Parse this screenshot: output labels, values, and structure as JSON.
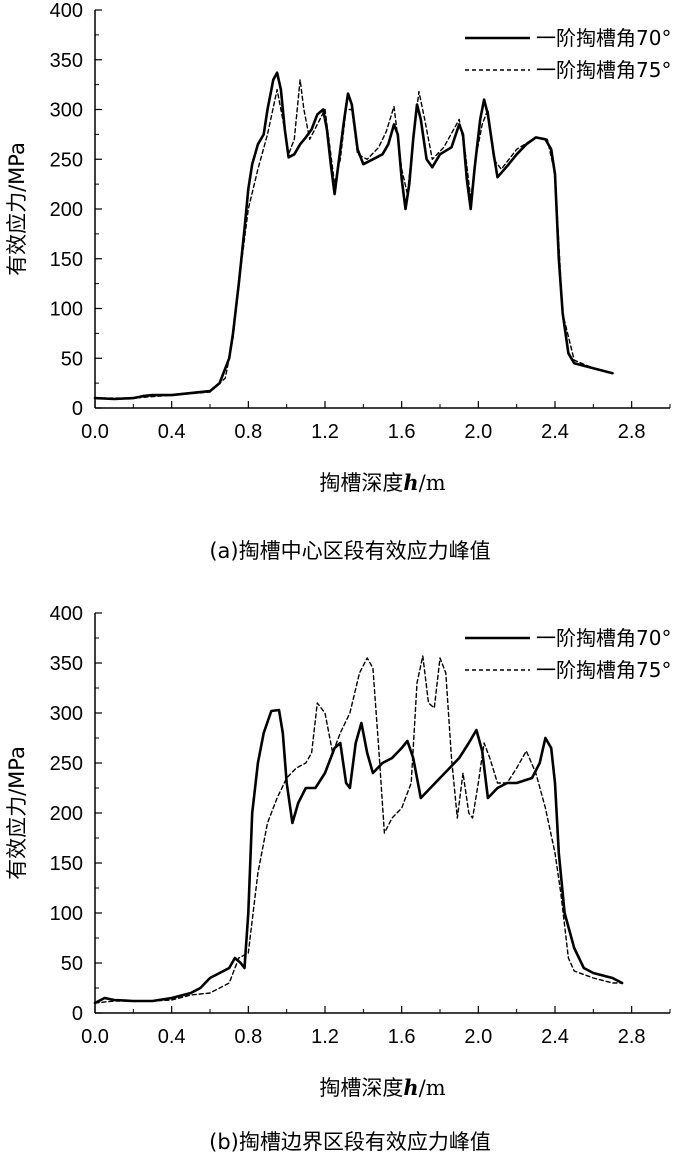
{
  "chart_data": [
    {
      "type": "line",
      "caption": "(a)掏槽中心区段有效应力峰值",
      "xlabel_main": "掏槽深度",
      "xlabel_var": "h",
      "xlabel_unit": "/m",
      "ylabel": "有效应力/MPa",
      "xlim": [
        0,
        3.0
      ],
      "ylim": [
        0,
        400
      ],
      "xticks": [
        "0.0",
        "0.4",
        "0.8",
        "1.2",
        "1.6",
        "2.0",
        "2.4",
        "2.8"
      ],
      "yticks": [
        "0",
        "50",
        "100",
        "150",
        "200",
        "250",
        "300",
        "350",
        "400"
      ],
      "legend_position": "top-right",
      "series": [
        {
          "name": "一阶掏槽角70°",
          "style": "solid",
          "points": [
            [
              0.0,
              10
            ],
            [
              0.1,
              9
            ],
            [
              0.2,
              10
            ],
            [
              0.25,
              12
            ],
            [
              0.3,
              13
            ],
            [
              0.4,
              13
            ],
            [
              0.5,
              15
            ],
            [
              0.6,
              17
            ],
            [
              0.65,
              25
            ],
            [
              0.7,
              50
            ],
            [
              0.72,
              75
            ],
            [
              0.75,
              125
            ],
            [
              0.78,
              180
            ],
            [
              0.8,
              220
            ],
            [
              0.82,
              245
            ],
            [
              0.85,
              265
            ],
            [
              0.88,
              275
            ],
            [
              0.9,
              300
            ],
            [
              0.93,
              330
            ],
            [
              0.95,
              337
            ],
            [
              0.97,
              320
            ],
            [
              0.99,
              280
            ],
            [
              1.01,
              252
            ],
            [
              1.04,
              255
            ],
            [
              1.07,
              265
            ],
            [
              1.1,
              272
            ],
            [
              1.13,
              280
            ],
            [
              1.16,
              295
            ],
            [
              1.19,
              300
            ],
            [
              1.21,
              280
            ],
            [
              1.23,
              245
            ],
            [
              1.25,
              215
            ],
            [
              1.27,
              245
            ],
            [
              1.3,
              290
            ],
            [
              1.32,
              316
            ],
            [
              1.34,
              305
            ],
            [
              1.37,
              260
            ],
            [
              1.4,
              245
            ],
            [
              1.45,
              250
            ],
            [
              1.5,
              255
            ],
            [
              1.53,
              265
            ],
            [
              1.56,
              285
            ],
            [
              1.58,
              275
            ],
            [
              1.6,
              230
            ],
            [
              1.62,
              200
            ],
            [
              1.64,
              225
            ],
            [
              1.66,
              270
            ],
            [
              1.68,
              305
            ],
            [
              1.7,
              290
            ],
            [
              1.73,
              250
            ],
            [
              1.76,
              242
            ],
            [
              1.8,
              255
            ],
            [
              1.86,
              262
            ],
            [
              1.9,
              285
            ],
            [
              1.92,
              275
            ],
            [
              1.94,
              230
            ],
            [
              1.96,
              200
            ],
            [
              1.98,
              240
            ],
            [
              2.01,
              290
            ],
            [
              2.03,
              310
            ],
            [
              2.05,
              295
            ],
            [
              2.08,
              255
            ],
            [
              2.1,
              232
            ],
            [
              2.15,
              243
            ],
            [
              2.2,
              255
            ],
            [
              2.25,
              265
            ],
            [
              2.3,
              272
            ],
            [
              2.35,
              270
            ],
            [
              2.38,
              260
            ],
            [
              2.4,
              235
            ],
            [
              2.42,
              150
            ],
            [
              2.44,
              95
            ],
            [
              2.47,
              55
            ],
            [
              2.5,
              45
            ],
            [
              2.6,
              40
            ],
            [
              2.7,
              35
            ]
          ]
        },
        {
          "name": "一阶掏槽角75°",
          "style": "dashed",
          "points": [
            [
              0.0,
              10
            ],
            [
              0.2,
              10
            ],
            [
              0.4,
              13
            ],
            [
              0.6,
              16
            ],
            [
              0.68,
              30
            ],
            [
              0.72,
              70
            ],
            [
              0.76,
              140
            ],
            [
              0.8,
              200
            ],
            [
              0.85,
              240
            ],
            [
              0.9,
              275
            ],
            [
              0.95,
              320
            ],
            [
              0.98,
              290
            ],
            [
              1.01,
              255
            ],
            [
              1.04,
              270
            ],
            [
              1.07,
              330
            ],
            [
              1.09,
              300
            ],
            [
              1.12,
              270
            ],
            [
              1.16,
              285
            ],
            [
              1.2,
              300
            ],
            [
              1.23,
              255
            ],
            [
              1.25,
              225
            ],
            [
              1.28,
              250
            ],
            [
              1.31,
              300
            ],
            [
              1.34,
              300
            ],
            [
              1.37,
              255
            ],
            [
              1.42,
              250
            ],
            [
              1.48,
              262
            ],
            [
              1.52,
              278
            ],
            [
              1.56,
              303
            ],
            [
              1.6,
              240
            ],
            [
              1.63,
              215
            ],
            [
              1.66,
              270
            ],
            [
              1.69,
              318
            ],
            [
              1.72,
              290
            ],
            [
              1.76,
              250
            ],
            [
              1.82,
              262
            ],
            [
              1.9,
              290
            ],
            [
              1.93,
              260
            ],
            [
              1.96,
              210
            ],
            [
              1.99,
              255
            ],
            [
              2.02,
              285
            ],
            [
              2.05,
              300
            ],
            [
              2.08,
              250
            ],
            [
              2.12,
              240
            ],
            [
              2.2,
              260
            ],
            [
              2.3,
              272
            ],
            [
              2.36,
              270
            ],
            [
              2.4,
              235
            ],
            [
              2.44,
              95
            ],
            [
              2.5,
              48
            ],
            [
              2.6,
              40
            ],
            [
              2.7,
              35
            ]
          ]
        }
      ]
    },
    {
      "type": "line",
      "caption": "(b)掏槽边界区段有效应力峰值",
      "xlabel_main": "掏槽深度",
      "xlabel_var": "h",
      "xlabel_unit": "/m",
      "ylabel": "有效应力/MPa",
      "xlim": [
        0,
        3.0
      ],
      "ylim": [
        0,
        400
      ],
      "xticks": [
        "0.0",
        "0.4",
        "0.8",
        "1.2",
        "1.6",
        "2.0",
        "2.4",
        "2.8"
      ],
      "yticks": [
        "0",
        "50",
        "100",
        "150",
        "200",
        "250",
        "300",
        "350",
        "400"
      ],
      "legend_position": "top-right",
      "series": [
        {
          "name": "一阶掏槽角70°",
          "style": "solid",
          "points": [
            [
              0.0,
              10
            ],
            [
              0.05,
              15
            ],
            [
              0.1,
              13
            ],
            [
              0.2,
              12
            ],
            [
              0.3,
              12
            ],
            [
              0.4,
              15
            ],
            [
              0.5,
              20
            ],
            [
              0.55,
              25
            ],
            [
              0.6,
              35
            ],
            [
              0.65,
              40
            ],
            [
              0.7,
              45
            ],
            [
              0.73,
              55
            ],
            [
              0.76,
              50
            ],
            [
              0.78,
              45
            ],
            [
              0.8,
              100
            ],
            [
              0.82,
              200
            ],
            [
              0.85,
              250
            ],
            [
              0.88,
              280
            ],
            [
              0.92,
              302
            ],
            [
              0.96,
              303
            ],
            [
              0.98,
              280
            ],
            [
              1.0,
              230
            ],
            [
              1.03,
              190
            ],
            [
              1.06,
              210
            ],
            [
              1.1,
              225
            ],
            [
              1.15,
              225
            ],
            [
              1.2,
              240
            ],
            [
              1.25,
              265
            ],
            [
              1.28,
              270
            ],
            [
              1.31,
              230
            ],
            [
              1.33,
              225
            ],
            [
              1.36,
              270
            ],
            [
              1.39,
              290
            ],
            [
              1.42,
              260
            ],
            [
              1.45,
              240
            ],
            [
              1.5,
              250
            ],
            [
              1.55,
              255
            ],
            [
              1.6,
              265
            ],
            [
              1.63,
              272
            ],
            [
              1.66,
              255
            ],
            [
              1.7,
              215
            ],
            [
              1.75,
              225
            ],
            [
              1.8,
              235
            ],
            [
              1.85,
              245
            ],
            [
              1.9,
              255
            ],
            [
              1.95,
              270
            ],
            [
              1.99,
              283
            ],
            [
              2.02,
              262
            ],
            [
              2.05,
              215
            ],
            [
              2.1,
              225
            ],
            [
              2.15,
              230
            ],
            [
              2.2,
              230
            ],
            [
              2.28,
              235
            ],
            [
              2.32,
              250
            ],
            [
              2.35,
              275
            ],
            [
              2.38,
              265
            ],
            [
              2.4,
              230
            ],
            [
              2.42,
              160
            ],
            [
              2.45,
              100
            ],
            [
              2.5,
              65
            ],
            [
              2.55,
              45
            ],
            [
              2.6,
              40
            ],
            [
              2.7,
              35
            ],
            [
              2.75,
              30
            ]
          ]
        },
        {
          "name": "一阶掏槽角75°",
          "style": "dashed",
          "points": [
            [
              0.0,
              10
            ],
            [
              0.1,
              12
            ],
            [
              0.2,
              12
            ],
            [
              0.3,
              12
            ],
            [
              0.4,
              13
            ],
            [
              0.5,
              18
            ],
            [
              0.6,
              20
            ],
            [
              0.7,
              30
            ],
            [
              0.75,
              55
            ],
            [
              0.8,
              60
            ],
            [
              0.85,
              140
            ],
            [
              0.9,
              190
            ],
            [
              0.95,
              215
            ],
            [
              1.0,
              235
            ],
            [
              1.05,
              245
            ],
            [
              1.1,
              250
            ],
            [
              1.13,
              260
            ],
            [
              1.16,
              310
            ],
            [
              1.2,
              300
            ],
            [
              1.24,
              260
            ],
            [
              1.28,
              280
            ],
            [
              1.33,
              300
            ],
            [
              1.38,
              340
            ],
            [
              1.42,
              355
            ],
            [
              1.45,
              345
            ],
            [
              1.48,
              265
            ],
            [
              1.51,
              180
            ],
            [
              1.55,
              195
            ],
            [
              1.6,
              205
            ],
            [
              1.65,
              230
            ],
            [
              1.68,
              330
            ],
            [
              1.71,
              357
            ],
            [
              1.74,
              310
            ],
            [
              1.77,
              305
            ],
            [
              1.8,
              355
            ],
            [
              1.83,
              340
            ],
            [
              1.86,
              255
            ],
            [
              1.89,
              195
            ],
            [
              1.92,
              240
            ],
            [
              1.95,
              200
            ],
            [
              1.97,
              195
            ],
            [
              2.0,
              230
            ],
            [
              2.03,
              270
            ],
            [
              2.06,
              255
            ],
            [
              2.1,
              230
            ],
            [
              2.15,
              230
            ],
            [
              2.2,
              245
            ],
            [
              2.25,
              262
            ],
            [
              2.3,
              240
            ],
            [
              2.35,
              205
            ],
            [
              2.4,
              160
            ],
            [
              2.43,
              120
            ],
            [
              2.47,
              55
            ],
            [
              2.5,
              42
            ],
            [
              2.6,
              35
            ],
            [
              2.7,
              30
            ],
            [
              2.75,
              30
            ]
          ]
        }
      ]
    }
  ]
}
